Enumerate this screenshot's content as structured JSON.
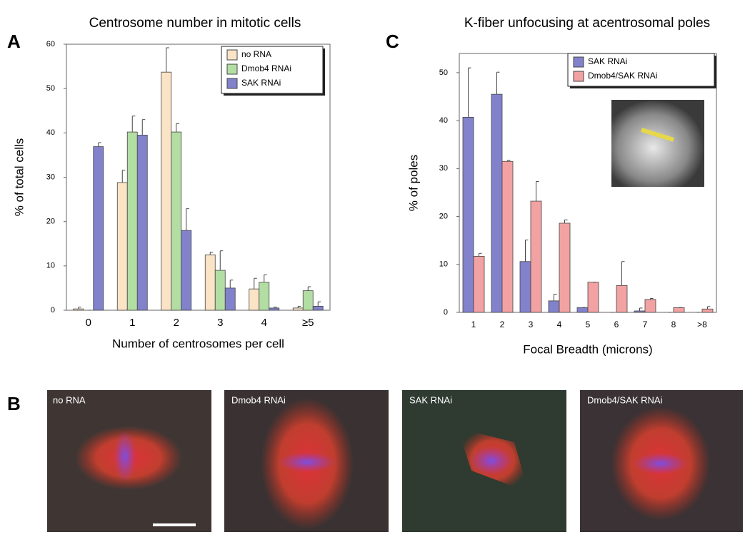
{
  "panels": {
    "a": "A",
    "b": "B",
    "c": "C"
  },
  "micrographs": [
    "no RNA",
    "Dmob4 RNAi",
    "SAK RNAi",
    "Dmob4/SAK RNAi"
  ],
  "chart_data": [
    {
      "type": "bar",
      "title": "Centrosome number in mitotic cells",
      "xlabel": "Number of centrosomes per cell",
      "ylabel": "% of total cells",
      "categories": [
        "0",
        "1",
        "2",
        "3",
        "4",
        "≥5"
      ],
      "series": [
        {
          "name": "no RNA",
          "color": "#fbe3c6",
          "values": [
            0.3,
            28.8,
            53.7,
            12.5,
            4.8,
            0.5
          ],
          "errors": [
            0.4,
            2.8,
            5.5,
            0.6,
            2.4,
            0.4
          ]
        },
        {
          "name": "Dmob4 RNAi",
          "color": "#b3dea3",
          "values": [
            0,
            40.2,
            40.2,
            9,
            6.3,
            4.4
          ],
          "errors": [
            0,
            3.6,
            1.9,
            4.4,
            1.7,
            0.9
          ]
        },
        {
          "name": "SAK RNAi",
          "color": "#8282cc",
          "values": [
            36.9,
            39.5,
            18,
            5,
            0.5,
            0.9
          ],
          "errors": [
            0.9,
            3.5,
            4.9,
            1.8,
            0.2,
            1
          ]
        }
      ],
      "ylim": [
        0,
        60
      ],
      "yticks": [
        0,
        10,
        20,
        30,
        40,
        50,
        60
      ],
      "legend": "upper right"
    },
    {
      "type": "bar",
      "title": "K-fiber unfocusing at acentrosomal poles",
      "xlabel": "Focal Breadth (microns)",
      "ylabel": "% of poles",
      "categories": [
        "1",
        "2",
        "3",
        "4",
        "5",
        "6",
        "7",
        "8",
        ">8"
      ],
      "series": [
        {
          "name": "SAK RNAi",
          "color": "#8282cc",
          "values": [
            40.7,
            45.5,
            10.6,
            2.4,
            1,
            0,
            0.3,
            0,
            0
          ],
          "errors": [
            10.3,
            4.6,
            4.5,
            1.4,
            0,
            0,
            0.6,
            0,
            0
          ]
        },
        {
          "name": "Dmob4/SAK RNAi",
          "color": "#f2a2a2",
          "values": [
            11.7,
            31.5,
            23.2,
            18.6,
            6.3,
            5.6,
            2.7,
            1,
            0.7
          ],
          "errors": [
            0.6,
            0.2,
            4.1,
            0.7,
            0,
            5,
            0.2,
            0,
            0.5
          ]
        }
      ],
      "ylim": [
        0,
        54
      ],
      "yticks": [
        0,
        10,
        20,
        30,
        40,
        50
      ],
      "legend": "upper right"
    }
  ]
}
